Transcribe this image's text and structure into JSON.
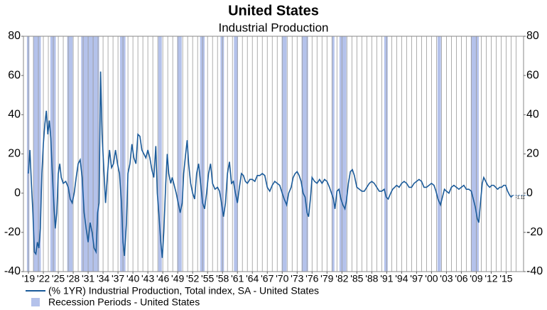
{
  "chart_data": {
    "type": "line",
    "title": "United States",
    "subtitle": "Industrial Production",
    "xlim": [
      1918,
      2018.5
    ],
    "xticks": [
      {
        "value": 1919,
        "label": "'19"
      },
      {
        "value": 1922,
        "label": "'22"
      },
      {
        "value": 1925,
        "label": "'25"
      },
      {
        "value": 1928,
        "label": "'28"
      },
      {
        "value": 1931,
        "label": "'31"
      },
      {
        "value": 1934,
        "label": "'34"
      },
      {
        "value": 1937,
        "label": "'37"
      },
      {
        "value": 1940,
        "label": "'40"
      },
      {
        "value": 1943,
        "label": "'43"
      },
      {
        "value": 1946,
        "label": "'46"
      },
      {
        "value": 1949,
        "label": "'49"
      },
      {
        "value": 1952,
        "label": "'52"
      },
      {
        "value": 1955,
        "label": "'55"
      },
      {
        "value": 1958,
        "label": "'58"
      },
      {
        "value": 1961,
        "label": "'61"
      },
      {
        "value": 1964,
        "label": "'64"
      },
      {
        "value": 1967,
        "label": "'67"
      },
      {
        "value": 1970,
        "label": "'70"
      },
      {
        "value": 1973,
        "label": "'73"
      },
      {
        "value": 1976,
        "label": "'76"
      },
      {
        "value": 1979,
        "label": "'79"
      },
      {
        "value": 1982,
        "label": "'82"
      },
      {
        "value": 1985,
        "label": "'85"
      },
      {
        "value": 1988,
        "label": "'88"
      },
      {
        "value": 1991,
        "label": "'91"
      },
      {
        "value": 1994,
        "label": "'94"
      },
      {
        "value": 1997,
        "label": "'97"
      },
      {
        "value": 2000,
        "label": "'00"
      },
      {
        "value": 2003,
        "label": "'03"
      },
      {
        "value": 2006,
        "label": "'06"
      },
      {
        "value": 2009,
        "label": "'09"
      },
      {
        "value": 2012,
        "label": "'12"
      },
      {
        "value": 2015,
        "label": "'15"
      }
    ],
    "xgrid": [
      1919,
      1920,
      1921,
      1922,
      1923,
      1924,
      1925,
      1926,
      1927,
      1928,
      1929,
      1930,
      1931,
      1932,
      1933,
      1934,
      1935,
      1936,
      1937,
      1938,
      1939,
      1940,
      1941,
      1942,
      1943,
      1944,
      1945,
      1946,
      1947,
      1948,
      1949,
      1950,
      1951,
      1952,
      1953,
      1954,
      1955,
      1956,
      1957,
      1958,
      1959,
      1960,
      1961,
      1962,
      1963,
      1964,
      1965,
      1966,
      1967,
      1968,
      1969,
      1970,
      1971,
      1972,
      1973,
      1974,
      1975,
      1976,
      1977,
      1978,
      1979,
      1980,
      1981,
      1982,
      1983,
      1984,
      1985,
      1986,
      1987,
      1988,
      1989,
      1990,
      1991,
      1992,
      1993,
      1994,
      1995,
      1996,
      1997,
      1998,
      1999,
      2000,
      2001,
      2002,
      2003,
      2004,
      2005,
      2006,
      2007,
      2008,
      2009,
      2010,
      2011,
      2012,
      2013,
      2014,
      2015,
      2016,
      2017
    ],
    "ylim": [
      -40,
      80
    ],
    "yticks": [
      -40,
      -20,
      0,
      20,
      40,
      60,
      80
    ],
    "y2lim": [
      -40,
      80
    ],
    "y2ticks": [
      -40,
      -20,
      0,
      20,
      40,
      60,
      80
    ],
    "x": [
      1919.0,
      1919.3,
      1919.6,
      1919.9,
      1920.2,
      1920.5,
      1920.8,
      1921.1,
      1921.4,
      1921.7,
      1922.0,
      1922.3,
      1922.6,
      1922.9,
      1923.2,
      1923.5,
      1923.8,
      1924.1,
      1924.4,
      1924.7,
      1925.0,
      1925.3,
      1925.6,
      1926.0,
      1926.5,
      1927.0,
      1927.4,
      1927.8,
      1928.2,
      1928.6,
      1929.0,
      1929.4,
      1929.8,
      1930.2,
      1930.6,
      1931.0,
      1931.4,
      1931.8,
      1932.2,
      1932.6,
      1932.9,
      1933.2,
      1933.5,
      1933.8,
      1934.1,
      1934.5,
      1934.9,
      1935.3,
      1935.7,
      1936.1,
      1936.5,
      1936.9,
      1937.3,
      1937.7,
      1938.0,
      1938.3,
      1938.7,
      1939.0,
      1939.4,
      1939.8,
      1940.2,
      1940.6,
      1941.0,
      1941.4,
      1941.8,
      1942.2,
      1942.6,
      1943.0,
      1943.4,
      1943.8,
      1944.2,
      1944.6,
      1944.9,
      1945.2,
      1945.6,
      1945.9,
      1946.2,
      1946.6,
      1946.9,
      1947.2,
      1947.6,
      1947.9,
      1948.3,
      1948.7,
      1949.1,
      1949.5,
      1949.9,
      1950.2,
      1950.6,
      1950.9,
      1951.2,
      1951.6,
      1952.0,
      1952.4,
      1952.8,
      1953.2,
      1953.6,
      1954.0,
      1954.4,
      1954.8,
      1955.2,
      1955.6,
      1956.0,
      1956.5,
      1957.0,
      1957.4,
      1957.8,
      1958.2,
      1958.6,
      1959.0,
      1959.4,
      1959.8,
      1960.2,
      1960.6,
      1961.0,
      1961.4,
      1961.8,
      1962.2,
      1962.6,
      1963.0,
      1963.5,
      1964.0,
      1964.5,
      1965.0,
      1965.5,
      1966.0,
      1966.5,
      1967.0,
      1967.5,
      1968.0,
      1968.5,
      1969.0,
      1969.5,
      1970.0,
      1970.4,
      1970.9,
      1971.3,
      1971.8,
      1972.2,
      1972.6,
      1973.0,
      1973.4,
      1973.8,
      1974.2,
      1974.6,
      1975.0,
      1975.3,
      1975.7,
      1976.0,
      1976.5,
      1977.0,
      1977.5,
      1978.0,
      1978.5,
      1979.0,
      1979.5,
      1979.9,
      1980.3,
      1980.6,
      1981.0,
      1981.4,
      1981.8,
      1982.2,
      1982.6,
      1982.9,
      1983.3,
      1983.7,
      1984.1,
      1984.5,
      1985.0,
      1985.5,
      1986.0,
      1986.5,
      1987.0,
      1987.5,
      1988.0,
      1988.5,
      1989.0,
      1989.5,
      1990.0,
      1990.5,
      1990.9,
      1991.3,
      1991.8,
      1992.2,
      1992.6,
      1993.0,
      1993.5,
      1994.0,
      1994.5,
      1995.0,
      1995.5,
      1996.0,
      1996.5,
      1997.0,
      1997.5,
      1998.0,
      1998.5,
      1999.0,
      1999.5,
      2000.0,
      2000.5,
      2000.9,
      2001.3,
      2001.8,
      2002.2,
      2002.6,
      2003.0,
      2003.5,
      2004.0,
      2004.5,
      2005.0,
      2005.5,
      2006.0,
      2006.5,
      2007.0,
      2007.5,
      2008.0,
      2008.4,
      2008.8,
      2009.2,
      2009.5,
      2009.8,
      2010.2,
      2010.5,
      2010.9,
      2011.3,
      2011.7,
      2012.1,
      2012.5,
      2012.9,
      2013.3,
      2013.7,
      2014.1,
      2014.5,
      2014.9,
      2015.3,
      2015.7,
      2016.0,
      2016.3
    ],
    "series": [
      {
        "name": "(% 1YR) Industrial Production, Total index, SA - United States",
        "color": "#1b5b9a",
        "values": [
          10,
          22,
          5,
          -10,
          -30,
          -31,
          -25,
          -28,
          -18,
          10,
          25,
          35,
          42,
          30,
          37,
          28,
          10,
          -5,
          -18,
          -10,
          10,
          15,
          8,
          5,
          6,
          3,
          -3,
          -5,
          0,
          8,
          15,
          17,
          8,
          -10,
          -18,
          -25,
          -15,
          -20,
          -28,
          -30,
          -10,
          -5,
          62,
          30,
          15,
          -5,
          10,
          22,
          13,
          15,
          22,
          15,
          10,
          -5,
          -25,
          -32,
          -15,
          10,
          15,
          25,
          18,
          15,
          30,
          29,
          22,
          20,
          18,
          22,
          18,
          12,
          8,
          24,
          0,
          -10,
          -25,
          -33,
          -20,
          5,
          20,
          10,
          5,
          8,
          4,
          0,
          -5,
          -10,
          -5,
          10,
          20,
          27,
          15,
          5,
          0,
          -3,
          10,
          15,
          5,
          -5,
          -8,
          0,
          10,
          15,
          5,
          2,
          3,
          1,
          -5,
          -12,
          -5,
          10,
          16,
          5,
          6,
          0,
          -5,
          3,
          10,
          9,
          6,
          5,
          7,
          7,
          6,
          9,
          9,
          10,
          9,
          3,
          1,
          4,
          6,
          5,
          4,
          0,
          -3,
          -6,
          0,
          3,
          8,
          10,
          11,
          9,
          6,
          0,
          -2,
          -10,
          -12,
          -2,
          8,
          6,
          5,
          7,
          5,
          7,
          6,
          3,
          0,
          -3,
          -8,
          1,
          2,
          -3,
          -6,
          -8,
          -4,
          5,
          11,
          12,
          9,
          3,
          2,
          1,
          1,
          3,
          5,
          6,
          5,
          3,
          1,
          1,
          2,
          -2,
          -3,
          0,
          2,
          3,
          4,
          3,
          5,
          6,
          5,
          3,
          3,
          5,
          6,
          7,
          6,
          3,
          3,
          4,
          5,
          4,
          1,
          -3,
          -6,
          -2,
          2,
          1,
          0,
          3,
          4,
          3,
          2,
          3,
          4,
          2,
          2,
          1,
          -3,
          -7,
          -13,
          -15,
          -6,
          5,
          8,
          6,
          4,
          3,
          4,
          4,
          3,
          2,
          3,
          3,
          4,
          4,
          1,
          -1,
          -2,
          -1.11
        ],
        "end_label": "-1.11"
      }
    ],
    "recessions": {
      "name": "Recession Periods - United States",
      "color": "#b4c2eb",
      "periods": [
        [
          1918.7,
          1919.2
        ],
        [
          1920.0,
          1921.5
        ],
        [
          1923.4,
          1924.5
        ],
        [
          1926.8,
          1927.9
        ],
        [
          1929.6,
          1933.2
        ],
        [
          1937.4,
          1938.5
        ],
        [
          1945.1,
          1945.8
        ],
        [
          1948.9,
          1949.8
        ],
        [
          1953.5,
          1954.4
        ],
        [
          1957.6,
          1958.3
        ],
        [
          1960.3,
          1961.1
        ],
        [
          1969.9,
          1970.9
        ],
        [
          1973.9,
          1975.2
        ],
        [
          1980.0,
          1980.5
        ],
        [
          1981.5,
          1982.9
        ],
        [
          1990.5,
          1991.2
        ],
        [
          2001.2,
          2001.9
        ],
        [
          2007.9,
          2009.5
        ]
      ]
    }
  }
}
